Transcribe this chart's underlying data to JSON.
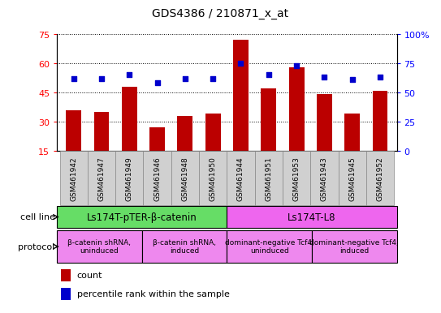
{
  "title": "GDS4386 / 210871_x_at",
  "samples": [
    "GSM461942",
    "GSM461947",
    "GSM461949",
    "GSM461946",
    "GSM461948",
    "GSM461950",
    "GSM461944",
    "GSM461951",
    "GSM461953",
    "GSM461943",
    "GSM461945",
    "GSM461952"
  ],
  "counts": [
    36,
    35,
    48,
    27,
    33,
    34,
    72,
    47,
    58,
    44,
    34,
    46
  ],
  "percentiles": [
    62,
    62,
    65,
    58,
    62,
    62,
    75,
    65,
    73,
    63,
    61,
    63
  ],
  "ylim_left": [
    15,
    75
  ],
  "ylim_right": [
    0,
    100
  ],
  "yticks_left": [
    15,
    30,
    45,
    60,
    75
  ],
  "yticks_right": [
    0,
    25,
    50,
    75,
    100
  ],
  "bar_color": "#bb0000",
  "dot_color": "#0000cc",
  "cell_line_groups": [
    {
      "label": "Ls174T-pTER-β-catenin",
      "start": 0,
      "end": 6,
      "color": "#66dd66"
    },
    {
      "label": "Ls174T-L8",
      "start": 6,
      "end": 12,
      "color": "#ee66ee"
    }
  ],
  "protocol_groups": [
    {
      "label": "β-catenin shRNA,\nuninduced",
      "start": 0,
      "end": 3
    },
    {
      "label": "β-catenin shRNA,\ninduced",
      "start": 3,
      "end": 6
    },
    {
      "label": "dominant-negative Tcf4,\nuninduced",
      "start": 6,
      "end": 9
    },
    {
      "label": "dominant-negative Tcf4,\ninduced",
      "start": 9,
      "end": 12
    }
  ],
  "protocol_color": "#ee88ee",
  "cell_line_label": "cell line",
  "protocol_label": "protocol",
  "legend_count": "count",
  "legend_percentile": "percentile rank within the sample",
  "bar_width": 0.55,
  "plot_bg": "#ffffff"
}
